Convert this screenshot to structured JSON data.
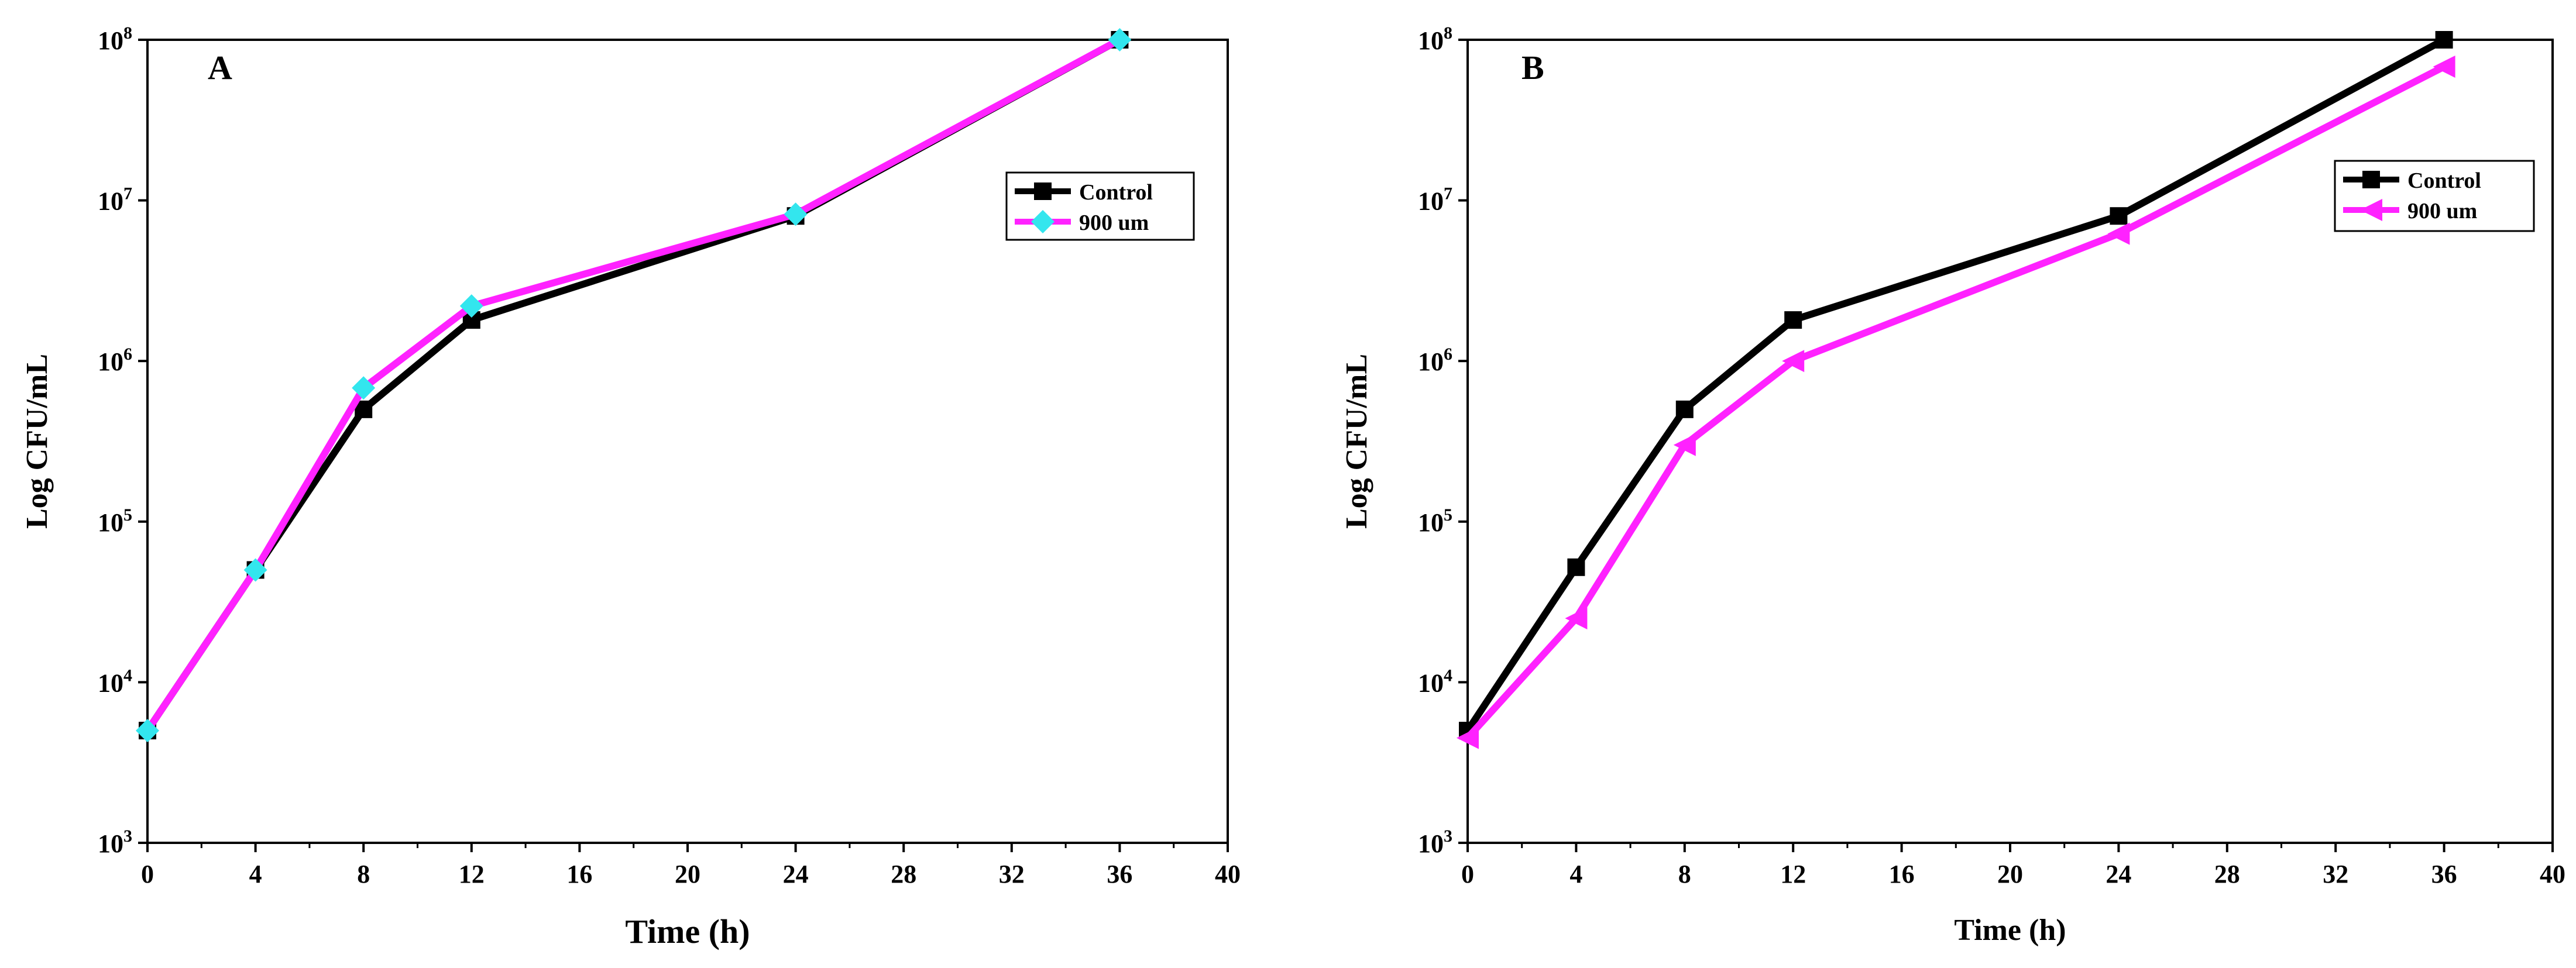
{
  "colors": {
    "control_line": "#000000",
    "control_marker": "#000000",
    "treatment_line": "#ff22ff",
    "panel_a_treatment_marker": "#33e6ee",
    "panel_b_treatment_marker": "#ff22ff"
  },
  "chart_data": [
    {
      "type": "line",
      "panel_label": "A",
      "xlabel": "Time (h)",
      "ylabel": "Log CFU/mL",
      "yscale": "log",
      "xlim": [
        0,
        40
      ],
      "ylim": [
        1000,
        100000000
      ],
      "x_ticks": [
        "0",
        "4",
        "8",
        "12",
        "16",
        "20",
        "24",
        "28",
        "32",
        "36",
        "40"
      ],
      "y_tick_base": "10",
      "y_tick_exponents": [
        "3",
        "4",
        "5",
        "6",
        "7",
        "8"
      ],
      "legend_position": "upper-right",
      "series": [
        {
          "name": "Control",
          "marker": "square",
          "x": [
            0,
            4,
            8,
            12,
            24,
            36
          ],
          "y": [
            5000,
            50000,
            500000,
            1800000,
            8000000,
            100000000
          ]
        },
        {
          "name": "900 um",
          "marker": "diamond",
          "x": [
            0,
            4,
            8,
            12,
            24,
            36
          ],
          "y": [
            5000,
            50000,
            680000,
            2200000,
            8200000,
            100000000
          ]
        }
      ]
    },
    {
      "type": "line",
      "panel_label": "B",
      "xlabel": "Time (h)",
      "ylabel": "Log CFU/mL",
      "yscale": "log",
      "xlim": [
        0,
        40
      ],
      "ylim": [
        1000,
        100000000
      ],
      "x_ticks": [
        "0",
        "4",
        "8",
        "12",
        "16",
        "20",
        "24",
        "28",
        "32",
        "36",
        "40"
      ],
      "y_tick_base": "10",
      "y_tick_exponents": [
        "3",
        "4",
        "5",
        "6",
        "7",
        "8"
      ],
      "legend_position": "upper-right",
      "series": [
        {
          "name": "Control",
          "marker": "square",
          "x": [
            0,
            4,
            8,
            12,
            24,
            36
          ],
          "y": [
            5000,
            52000,
            500000,
            1800000,
            8000000,
            100000000
          ]
        },
        {
          "name": "900 um",
          "marker": "left-triangle",
          "x": [
            0,
            4,
            8,
            12,
            24,
            36
          ],
          "y": [
            4500,
            25000,
            300000,
            1000000,
            6200000,
            68000000
          ]
        }
      ]
    }
  ]
}
